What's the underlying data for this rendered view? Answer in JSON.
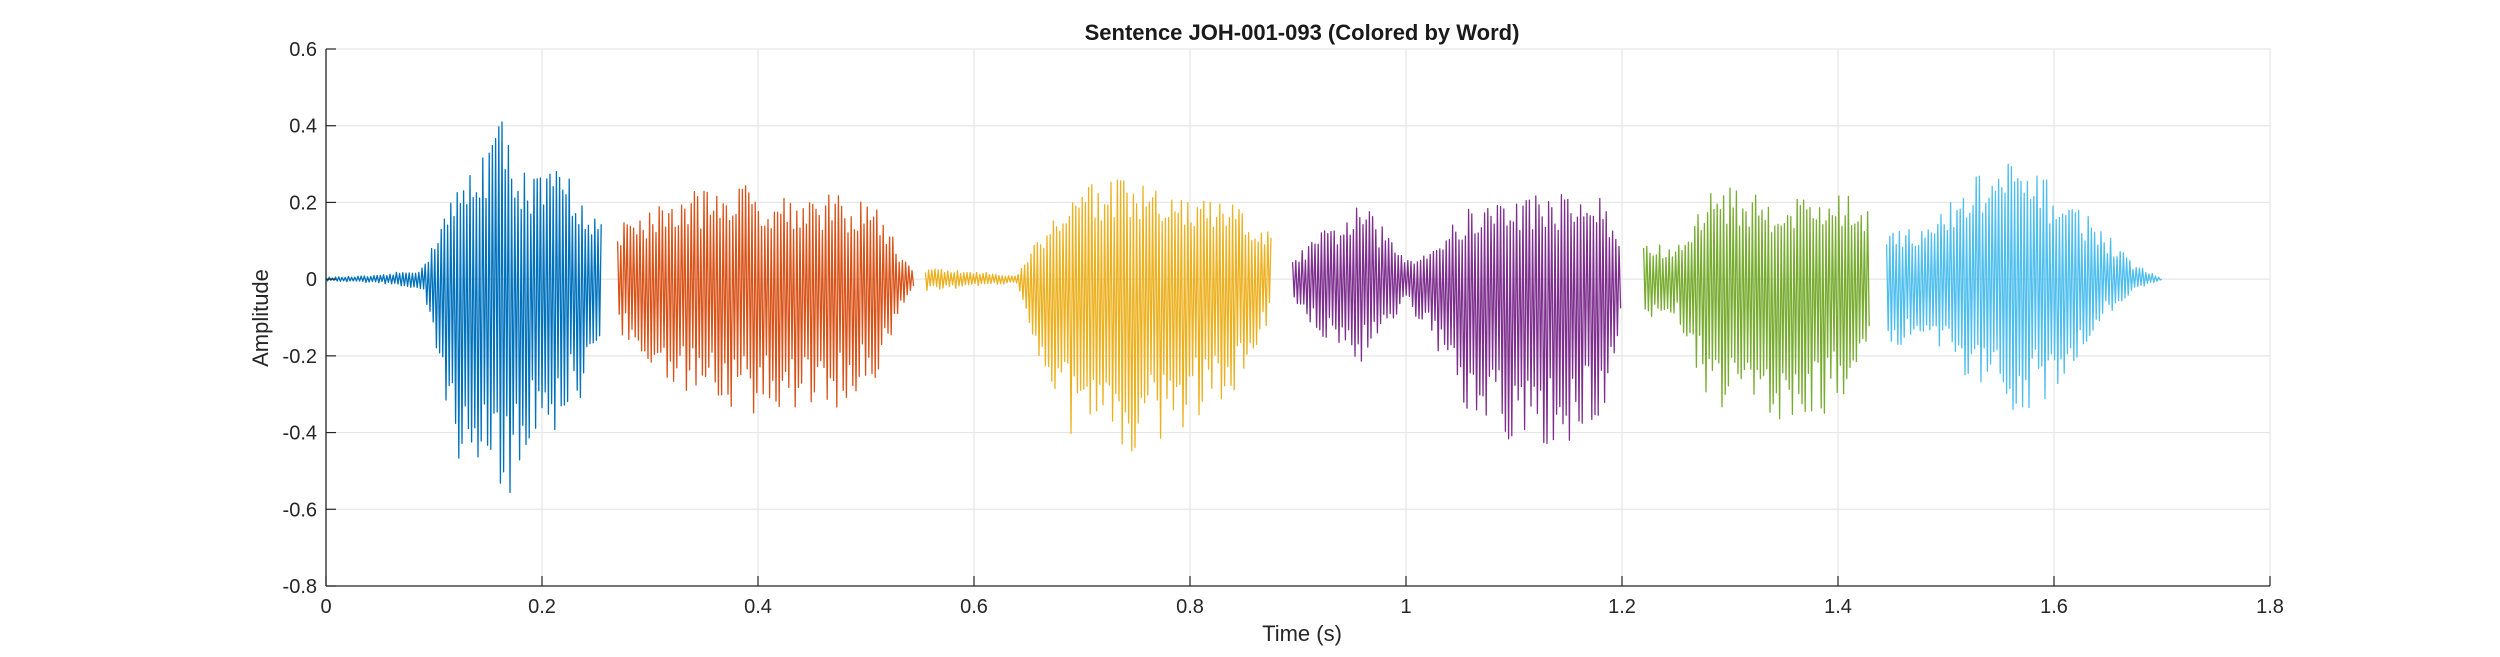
{
  "chart_data": {
    "type": "line",
    "title": "Sentence JOH-001-093 (Colored by Word)",
    "xlabel": "Time (s)",
    "ylabel": "Amplitude",
    "xlim": [
      0,
      1.8
    ],
    "ylim": [
      -0.8,
      0.6
    ],
    "xticks": [
      "0",
      "0.2",
      "0.4",
      "0.6",
      "0.8",
      "1",
      "1.2",
      "1.4",
      "1.6",
      "1.8"
    ],
    "yticks": [
      "0.6",
      "0.4",
      "0.2",
      "0",
      "-0.2",
      "-0.4",
      "-0.6",
      "-0.8"
    ],
    "grid": true,
    "legend": false,
    "series": [
      {
        "color": "#0072BD",
        "t_start": 0.0,
        "t_end": 0.255,
        "envelope": {
          "t": [
            0.0,
            0.05,
            0.09,
            0.1,
            0.11,
            0.13,
            0.16,
            0.19,
            0.22,
            0.24,
            0.255
          ],
          "upper": [
            0.005,
            0.01,
            0.03,
            0.12,
            0.18,
            0.28,
            0.44,
            0.27,
            0.3,
            0.22,
            0.15
          ],
          "lower": [
            -0.005,
            -0.01,
            -0.03,
            -0.2,
            -0.38,
            -0.52,
            -0.61,
            -0.47,
            -0.38,
            -0.3,
            -0.2
          ]
        }
      },
      {
        "color": "#D95319",
        "t_start": 0.27,
        "t_end": 0.545,
        "envelope": {
          "t": [
            0.27,
            0.29,
            0.33,
            0.37,
            0.42,
            0.47,
            0.51,
            0.53,
            0.545
          ],
          "upper": [
            0.14,
            0.18,
            0.22,
            0.26,
            0.23,
            0.22,
            0.2,
            0.08,
            0.02
          ],
          "lower": [
            -0.13,
            -0.2,
            -0.3,
            -0.35,
            -0.36,
            -0.35,
            -0.26,
            -0.1,
            -0.02
          ]
        }
      },
      {
        "color": "#EDB120",
        "t_start": 0.555,
        "t_end": 0.875,
        "envelope": {
          "t": [
            0.555,
            0.6,
            0.64,
            0.66,
            0.7,
            0.74,
            0.79,
            0.84,
            0.875
          ],
          "upper": [
            0.03,
            0.02,
            0.01,
            0.12,
            0.27,
            0.26,
            0.22,
            0.2,
            0.12
          ],
          "lower": [
            -0.03,
            -0.02,
            -0.01,
            -0.2,
            -0.48,
            -0.46,
            -0.4,
            -0.3,
            -0.1
          ]
        }
      },
      {
        "color": "#7E2F8E",
        "t_start": 0.895,
        "t_end": 1.2,
        "envelope": {
          "t": [
            0.895,
            0.92,
            0.96,
            1.0,
            1.02,
            1.06,
            1.1,
            1.14,
            1.18,
            1.2
          ],
          "upper": [
            0.05,
            0.12,
            0.2,
            0.06,
            0.08,
            0.19,
            0.22,
            0.23,
            0.22,
            0.1
          ],
          "lower": [
            -0.05,
            -0.15,
            -0.22,
            -0.06,
            -0.15,
            -0.38,
            -0.45,
            -0.45,
            -0.38,
            -0.12
          ]
        }
      },
      {
        "color": "#77AC30",
        "t_start": 1.22,
        "t_end": 1.43,
        "envelope": {
          "t": [
            1.22,
            1.25,
            1.29,
            1.32,
            1.36,
            1.4,
            1.43
          ],
          "upper": [
            0.1,
            0.08,
            0.27,
            0.22,
            0.22,
            0.23,
            0.19
          ],
          "lower": [
            -0.1,
            -0.1,
            -0.38,
            -0.32,
            -0.4,
            -0.33,
            -0.18
          ]
        }
      },
      {
        "color": "#4DBEEE",
        "t_start": 1.445,
        "t_end": 1.7,
        "envelope": {
          "t": [
            1.445,
            1.48,
            1.53,
            1.56,
            1.6,
            1.64,
            1.67,
            1.7
          ],
          "upper": [
            0.16,
            0.13,
            0.28,
            0.31,
            0.25,
            0.15,
            0.05,
            0.0
          ],
          "lower": [
            -0.18,
            -0.16,
            -0.3,
            -0.36,
            -0.3,
            -0.12,
            -0.04,
            0.0
          ]
        }
      }
    ]
  }
}
